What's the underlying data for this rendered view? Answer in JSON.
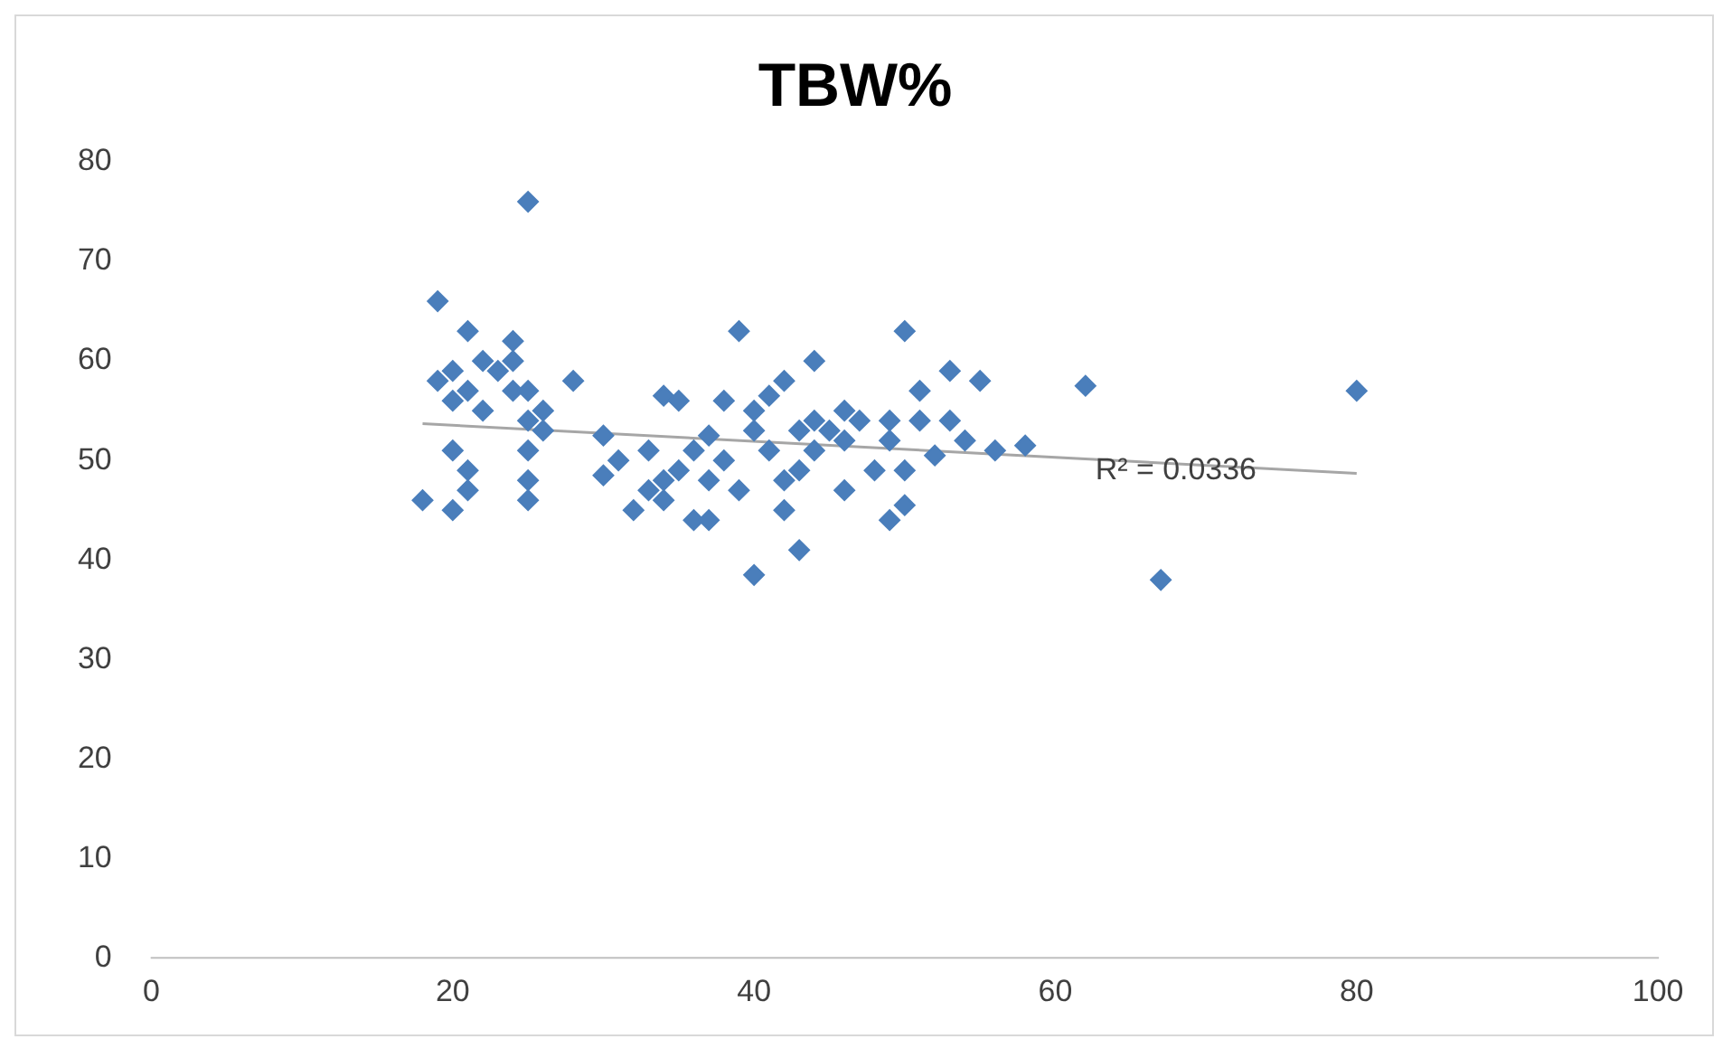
{
  "chart_data": {
    "type": "scatter",
    "title": "TBW%",
    "grid": false,
    "legend": false,
    "xlim": [
      0,
      100
    ],
    "xticks": [
      0,
      20,
      40,
      60,
      80,
      100
    ],
    "ylim": [
      0,
      80
    ],
    "yticks": [
      0,
      10,
      20,
      30,
      40,
      50,
      60,
      70,
      80
    ],
    "annotations": [
      {
        "text": "R² = 0.0336",
        "x": 68,
        "y": 49
      }
    ],
    "series": [
      {
        "type": "scatter",
        "marker": "diamond",
        "color": "#4a7ebb",
        "x": [
          18,
          19,
          19,
          20,
          20,
          20,
          20,
          21,
          21,
          21,
          22,
          21,
          22,
          23,
          24,
          24,
          24,
          25,
          25,
          25,
          25,
          25,
          25,
          26,
          26,
          28,
          30,
          30,
          31,
          32,
          33,
          33,
          34,
          34,
          34,
          35,
          35,
          36,
          36,
          37,
          37,
          37,
          38,
          38,
          39,
          39,
          40,
          40,
          40,
          41,
          41,
          42,
          42,
          42,
          43,
          43,
          43,
          44,
          44,
          44,
          45,
          46,
          46,
          46,
          47,
          48,
          49,
          49,
          49,
          50,
          50,
          50,
          51,
          51,
          52,
          53,
          53,
          54,
          55,
          56,
          58,
          62,
          67,
          80
        ],
        "values": [
          46,
          66,
          58,
          59,
          56,
          51,
          45,
          49,
          63,
          57,
          60,
          47,
          55,
          59,
          57,
          62,
          60,
          57,
          76,
          54,
          51,
          48,
          46,
          55,
          53,
          58,
          52.5,
          48.5,
          50,
          45,
          47,
          51,
          56.5,
          48,
          46,
          56,
          49,
          51,
          44,
          44,
          48,
          52.5,
          56,
          50,
          63,
          47,
          38.5,
          55,
          53,
          56.5,
          51,
          48,
          58,
          45,
          53,
          41,
          49,
          54,
          60,
          51,
          53,
          55,
          47,
          52,
          54,
          49,
          54,
          44,
          52,
          45.5,
          63,
          49,
          57,
          54,
          50.5,
          59,
          54,
          52,
          58,
          51,
          51.5,
          57.5,
          38,
          57
        ]
      },
      {
        "type": "line",
        "marker": "none",
        "color": "#a6a6a6",
        "x": [
          18,
          80
        ],
        "values": [
          53.7,
          48.7
        ]
      }
    ]
  }
}
